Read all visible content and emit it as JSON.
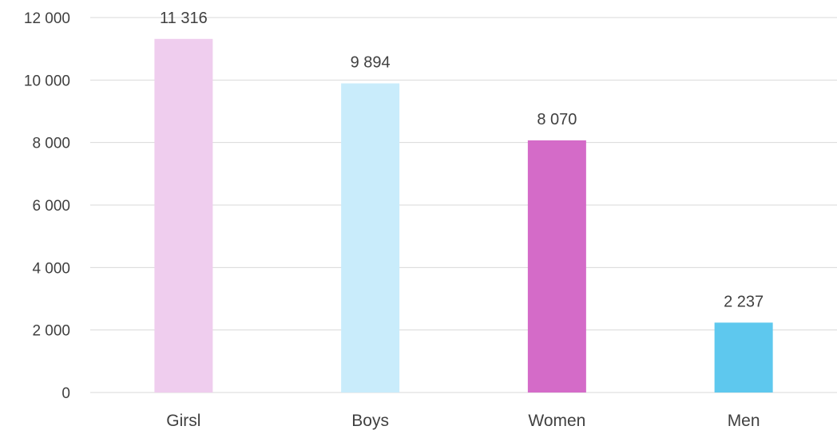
{
  "chart_data": {
    "type": "bar",
    "title": "",
    "xlabel": "",
    "ylabel": "",
    "categories": [
      "Girsl",
      "Boys",
      "Women",
      "Men"
    ],
    "values": [
      11316,
      9894,
      8070,
      2237
    ],
    "value_labels": [
      "11 316",
      "9 894",
      "8 070",
      "2 237"
    ],
    "bar_colors": [
      "#efcdee",
      "#c9ecfb",
      "#d46bc8",
      "#5ec8ee"
    ],
    "ylim": [
      0,
      12000
    ],
    "yticks": [
      0,
      2000,
      4000,
      6000,
      8000,
      10000,
      12000
    ],
    "ytick_labels": [
      "0",
      "2 000",
      "4 000",
      "6 000",
      "8 000",
      "10 000",
      "12 000"
    ],
    "grid": true,
    "legend": "none"
  }
}
